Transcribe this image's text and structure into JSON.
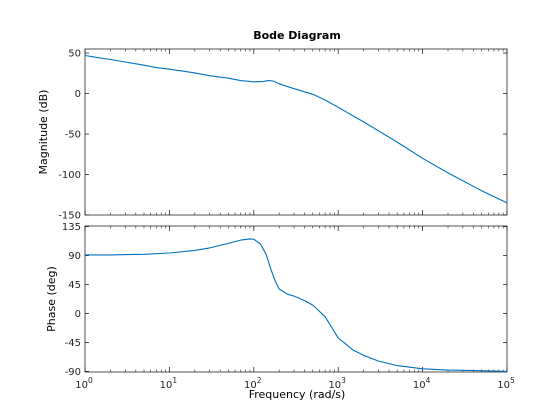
{
  "chart_data": {
    "type": "line",
    "title": "Bode Diagram",
    "xlabel": "Frequency  (rad/s)",
    "x_scale": "log",
    "xlim": [
      1,
      100000
    ],
    "x_ticks": [
      {
        "value": 1,
        "base": "10",
        "exp": "0"
      },
      {
        "value": 10,
        "base": "10",
        "exp": "1"
      },
      {
        "value": 100,
        "base": "10",
        "exp": "2"
      },
      {
        "value": 1000,
        "base": "10",
        "exp": "3"
      },
      {
        "value": 10000,
        "base": "10",
        "exp": "4"
      },
      {
        "value": 100000,
        "base": "10",
        "exp": "5"
      }
    ],
    "line_color": "#0072BD",
    "grid": false,
    "subplots": [
      {
        "name": "magnitude",
        "ylabel": "Magnitude (dB)",
        "ylim": [
          -150,
          55
        ],
        "y_ticks": [
          {
            "value": 50,
            "label": "50"
          },
          {
            "value": 0,
            "label": "0"
          },
          {
            "value": -50,
            "label": "-50"
          },
          {
            "value": -100,
            "label": "-100"
          },
          {
            "value": -150,
            "label": "-150"
          }
        ],
        "x": [
          1,
          1.5,
          2,
          3,
          5,
          7,
          10,
          15,
          20,
          30,
          50,
          70,
          100,
          130,
          150,
          170,
          200,
          300,
          500,
          700,
          1000,
          2000,
          5000,
          10000,
          20000,
          50000,
          100000
        ],
        "y": [
          47,
          44,
          42,
          39,
          35,
          32,
          30,
          27.5,
          25.5,
          22,
          19,
          16,
          14.5,
          15,
          16,
          15.5,
          12,
          6,
          -1,
          -8,
          -17,
          -35,
          -60,
          -80,
          -98,
          -120,
          -135
        ]
      },
      {
        "name": "phase",
        "ylabel": "Phase (deg)",
        "ylim": [
          -91,
          136
        ],
        "y_ticks": [
          {
            "value": 135,
            "label": "135"
          },
          {
            "value": 90,
            "label": "90"
          },
          {
            "value": 45,
            "label": "45"
          },
          {
            "value": 0,
            "label": "0"
          },
          {
            "value": -45,
            "label": "-45"
          },
          {
            "value": -90,
            "label": "-90"
          }
        ],
        "x": [
          1,
          2,
          5,
          10,
          20,
          30,
          50,
          70,
          90,
          100,
          120,
          140,
          160,
          180,
          200,
          250,
          300,
          400,
          500,
          700,
          1000,
          1500,
          2000,
          3000,
          5000,
          10000,
          20000,
          50000,
          100000
        ],
        "y": [
          91,
          91,
          92,
          94,
          98,
          102,
          109,
          114,
          116,
          115.5,
          108,
          92,
          68,
          50,
          38,
          30,
          27,
          20,
          13,
          -5,
          -38,
          -57,
          -65,
          -74,
          -81,
          -86,
          -88,
          -89,
          -90
        ]
      }
    ]
  }
}
